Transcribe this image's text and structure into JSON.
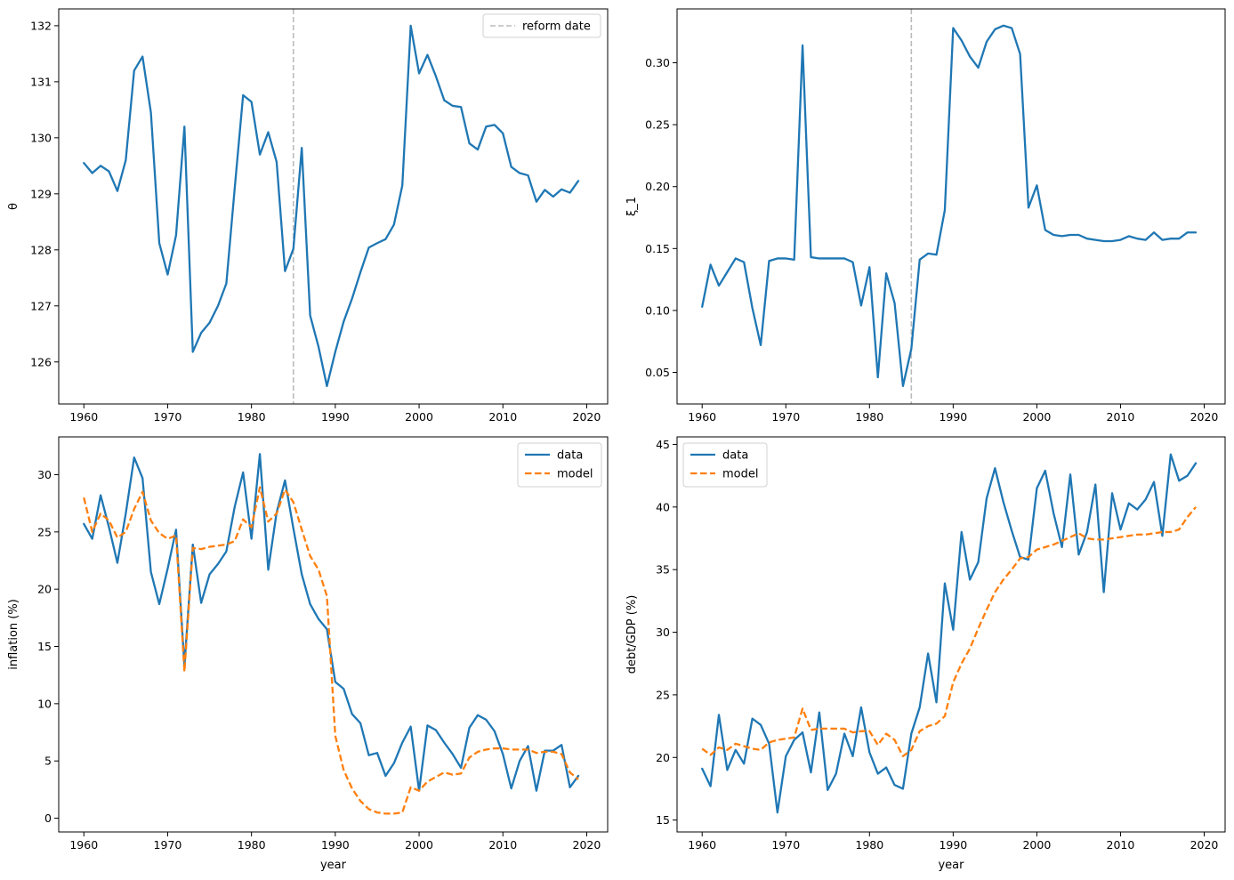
{
  "figure": {
    "background": "#ffffff",
    "colors": {
      "data": "#1f77b4",
      "model": "#ff7f0e",
      "reform": "#bbbbbb"
    }
  },
  "chart_data": [
    {
      "type": "line",
      "xlabel": "",
      "ylabel": "θ",
      "xlim": [
        1957,
        2022.5
      ],
      "ylim": [
        125.25,
        132.3
      ],
      "xticks": [
        1960,
        1970,
        1980,
        1990,
        2000,
        2010,
        2020
      ],
      "yticks": [
        126,
        127,
        128,
        129,
        130,
        131,
        132
      ],
      "grid": false,
      "legend": "top-right",
      "vline": {
        "x": 1985,
        "label": "reform date",
        "style": "dashed"
      },
      "x": [
        1960,
        1961,
        1962,
        1963,
        1964,
        1965,
        1966,
        1967,
        1968,
        1969,
        1970,
        1971,
        1972,
        1973,
        1974,
        1975,
        1976,
        1977,
        1978,
        1979,
        1980,
        1981,
        1982,
        1983,
        1984,
        1985,
        1986,
        1987,
        1988,
        1989,
        1990,
        1991,
        1992,
        1993,
        1994,
        1995,
        1996,
        1997,
        1998,
        1999,
        2000,
        2001,
        2002,
        2003,
        2004,
        2005,
        2006,
        2007,
        2008,
        2009,
        2010,
        2011,
        2012,
        2013,
        2014,
        2015,
        2016,
        2017,
        2018,
        2019
      ],
      "series": [
        {
          "values": [
            129.55,
            129.37,
            129.5,
            129.4,
            129.05,
            129.6,
            131.2,
            131.45,
            130.45,
            128.12,
            127.56,
            128.26,
            130.2,
            126.18,
            126.52,
            126.7,
            127.0,
            127.4,
            129.1,
            130.76,
            130.64,
            129.7,
            130.1,
            129.57,
            127.62,
            128.02,
            129.82,
            126.83,
            126.27,
            125.57,
            126.18,
            126.72,
            127.13,
            127.6,
            128.04,
            128.12,
            128.19,
            128.45,
            129.15,
            132.0,
            131.15,
            131.48,
            131.1,
            130.67,
            130.57,
            130.55,
            129.9,
            129.79,
            130.2,
            130.23,
            130.08,
            129.48,
            129.37,
            129.33,
            128.86,
            129.07,
            128.95,
            129.08,
            129.02,
            129.23
          ]
        }
      ]
    },
    {
      "type": "line",
      "xlabel": "",
      "ylabel": "ξ_1",
      "xlim": [
        1957,
        2022.5
      ],
      "ylim": [
        0.0245,
        0.3435
      ],
      "xticks": [
        1960,
        1970,
        1980,
        1990,
        2000,
        2010,
        2020
      ],
      "yticks": [
        0.05,
        0.1,
        0.15,
        0.2,
        0.25,
        0.3
      ],
      "ytick_labels": [
        "0.05",
        "0.10",
        "0.15",
        "0.20",
        "0.25",
        "0.30"
      ],
      "grid": false,
      "vline": {
        "x": 1985,
        "style": "dashed"
      },
      "x": [
        1960,
        1961,
        1962,
        1963,
        1964,
        1965,
        1966,
        1967,
        1968,
        1969,
        1970,
        1971,
        1972,
        1973,
        1974,
        1975,
        1976,
        1977,
        1978,
        1979,
        1980,
        1981,
        1982,
        1983,
        1984,
        1985,
        1986,
        1987,
        1988,
        1989,
        1990,
        1991,
        1992,
        1993,
        1994,
        1995,
        1996,
        1997,
        1998,
        1999,
        2000,
        2001,
        2002,
        2003,
        2004,
        2005,
        2006,
        2007,
        2008,
        2009,
        2010,
        2011,
        2012,
        2013,
        2014,
        2015,
        2016,
        2017,
        2018,
        2019
      ],
      "series": [
        {
          "values": [
            0.103,
            0.137,
            0.12,
            0.131,
            0.142,
            0.139,
            0.102,
            0.072,
            0.14,
            0.142,
            0.142,
            0.141,
            0.314,
            0.143,
            0.142,
            0.142,
            0.142,
            0.142,
            0.139,
            0.104,
            0.135,
            0.046,
            0.13,
            0.106,
            0.039,
            0.069,
            0.141,
            0.146,
            0.145,
            0.181,
            0.328,
            0.318,
            0.305,
            0.296,
            0.317,
            0.327,
            0.33,
            0.328,
            0.307,
            0.183,
            0.201,
            0.165,
            0.161,
            0.16,
            0.161,
            0.161,
            0.158,
            0.157,
            0.156,
            0.156,
            0.157,
            0.16,
            0.158,
            0.157,
            0.163,
            0.157,
            0.158,
            0.158,
            0.163,
            0.163
          ]
        }
      ]
    },
    {
      "type": "line",
      "xlabel": "year",
      "ylabel": "inflation (%)",
      "xlim": [
        1957,
        2022.5
      ],
      "ylim": [
        -1.2,
        33.3
      ],
      "xticks": [
        1960,
        1970,
        1980,
        1990,
        2000,
        2010,
        2020
      ],
      "yticks": [
        0,
        5,
        10,
        15,
        20,
        25,
        30
      ],
      "grid": false,
      "legend": "top-right",
      "x": [
        1960,
        1961,
        1962,
        1963,
        1964,
        1965,
        1966,
        1967,
        1968,
        1969,
        1970,
        1971,
        1972,
        1973,
        1974,
        1975,
        1976,
        1977,
        1978,
        1979,
        1980,
        1981,
        1982,
        1983,
        1984,
        1985,
        1986,
        1987,
        1988,
        1989,
        1990,
        1991,
        1992,
        1993,
        1994,
        1995,
        1996,
        1997,
        1998,
        1999,
        2000,
        2001,
        2002,
        2003,
        2004,
        2005,
        2006,
        2007,
        2008,
        2009,
        2010,
        2011,
        2012,
        2013,
        2014,
        2015,
        2016,
        2017,
        2018,
        2019
      ],
      "series": [
        {
          "name": "data",
          "style": "solid",
          "values": [
            25.7,
            24.4,
            28.2,
            25.4,
            22.3,
            26.6,
            31.5,
            29.7,
            21.5,
            18.7,
            21.8,
            25.2,
            13.3,
            23.9,
            18.8,
            21.3,
            22.2,
            23.3,
            27.2,
            30.2,
            24.4,
            31.8,
            21.7,
            26.7,
            29.5,
            25.3,
            21.3,
            18.7,
            17.4,
            16.5,
            11.9,
            11.3,
            9.1,
            8.3,
            5.5,
            5.7,
            3.7,
            4.8,
            6.6,
            8.0,
            2.4,
            8.1,
            7.7,
            6.6,
            5.6,
            4.4,
            7.9,
            9.0,
            8.6,
            7.6,
            5.6,
            2.6,
            5.0,
            6.3,
            2.4,
            5.9,
            5.9,
            6.4,
            2.7,
            3.7
          ]
        },
        {
          "name": "model",
          "style": "dashed",
          "values": [
            28.0,
            25.0,
            26.6,
            26.0,
            24.5,
            25.0,
            27.0,
            28.5,
            26.0,
            24.9,
            24.4,
            24.7,
            12.8,
            23.6,
            23.5,
            23.7,
            23.8,
            23.9,
            24.2,
            26.1,
            25.4,
            28.9,
            25.9,
            26.6,
            28.7,
            27.6,
            25.2,
            22.9,
            21.7,
            19.4,
            7.2,
            4.2,
            2.6,
            1.5,
            0.8,
            0.5,
            0.4,
            0.4,
            0.5,
            2.7,
            2.4,
            3.2,
            3.6,
            4.0,
            3.8,
            3.9,
            5.3,
            5.8,
            6.0,
            6.1,
            6.1,
            6.0,
            6.0,
            6.0,
            5.7,
            5.8,
            5.8,
            5.6,
            4.0,
            3.4
          ]
        }
      ]
    },
    {
      "type": "line",
      "xlabel": "year",
      "ylabel": "debt/GDP (%)",
      "xlim": [
        1957,
        2022.5
      ],
      "ylim": [
        14.05,
        45.6
      ],
      "xticks": [
        1960,
        1970,
        1980,
        1990,
        2000,
        2010,
        2020
      ],
      "yticks": [
        15,
        20,
        25,
        30,
        35,
        40,
        45
      ],
      "grid": false,
      "legend": "top-left",
      "x": [
        1960,
        1961,
        1962,
        1963,
        1964,
        1965,
        1966,
        1967,
        1968,
        1969,
        1970,
        1971,
        1972,
        1973,
        1974,
        1975,
        1976,
        1977,
        1978,
        1979,
        1980,
        1981,
        1982,
        1983,
        1984,
        1985,
        1986,
        1987,
        1988,
        1989,
        1990,
        1991,
        1992,
        1993,
        1994,
        1995,
        1996,
        1997,
        1998,
        1999,
        2000,
        2001,
        2002,
        2003,
        2004,
        2005,
        2006,
        2007,
        2008,
        2009,
        2010,
        2011,
        2012,
        2013,
        2014,
        2015,
        2016,
        2017,
        2018,
        2019
      ],
      "series": [
        {
          "name": "data",
          "style": "solid",
          "values": [
            19.1,
            17.7,
            23.4,
            19.0,
            20.6,
            19.5,
            23.1,
            22.6,
            21.1,
            15.6,
            20.1,
            21.4,
            22.0,
            18.8,
            23.6,
            17.4,
            18.7,
            21.9,
            20.1,
            24.0,
            20.4,
            18.7,
            19.2,
            17.8,
            17.5,
            21.9,
            24.0,
            28.3,
            24.4,
            33.9,
            30.2,
            38.0,
            34.2,
            35.6,
            40.7,
            43.1,
            40.4,
            38.1,
            36.0,
            35.8,
            41.5,
            42.9,
            39.5,
            36.8,
            42.6,
            36.2,
            38.0,
            41.8,
            33.2,
            41.1,
            38.2,
            40.3,
            39.8,
            40.6,
            42.0,
            37.7,
            44.2,
            42.1,
            42.5,
            43.5
          ]
        },
        {
          "name": "model",
          "style": "dashed",
          "values": [
            20.7,
            20.2,
            20.8,
            20.6,
            21.1,
            20.9,
            20.7,
            20.6,
            21.2,
            21.4,
            21.5,
            21.6,
            23.9,
            22.2,
            22.3,
            22.3,
            22.3,
            22.3,
            22.0,
            22.1,
            22.1,
            21.0,
            21.9,
            21.4,
            20.1,
            20.6,
            22.1,
            22.5,
            22.7,
            23.3,
            26.0,
            27.5,
            28.7,
            30.3,
            31.8,
            33.2,
            34.2,
            35.0,
            35.9,
            36.0,
            36.6,
            36.8,
            37.0,
            37.3,
            37.6,
            37.9,
            37.5,
            37.4,
            37.4,
            37.5,
            37.6,
            37.7,
            37.8,
            37.8,
            37.9,
            38.0,
            38.0,
            38.2,
            39.2,
            40.0
          ]
        }
      ]
    }
  ]
}
